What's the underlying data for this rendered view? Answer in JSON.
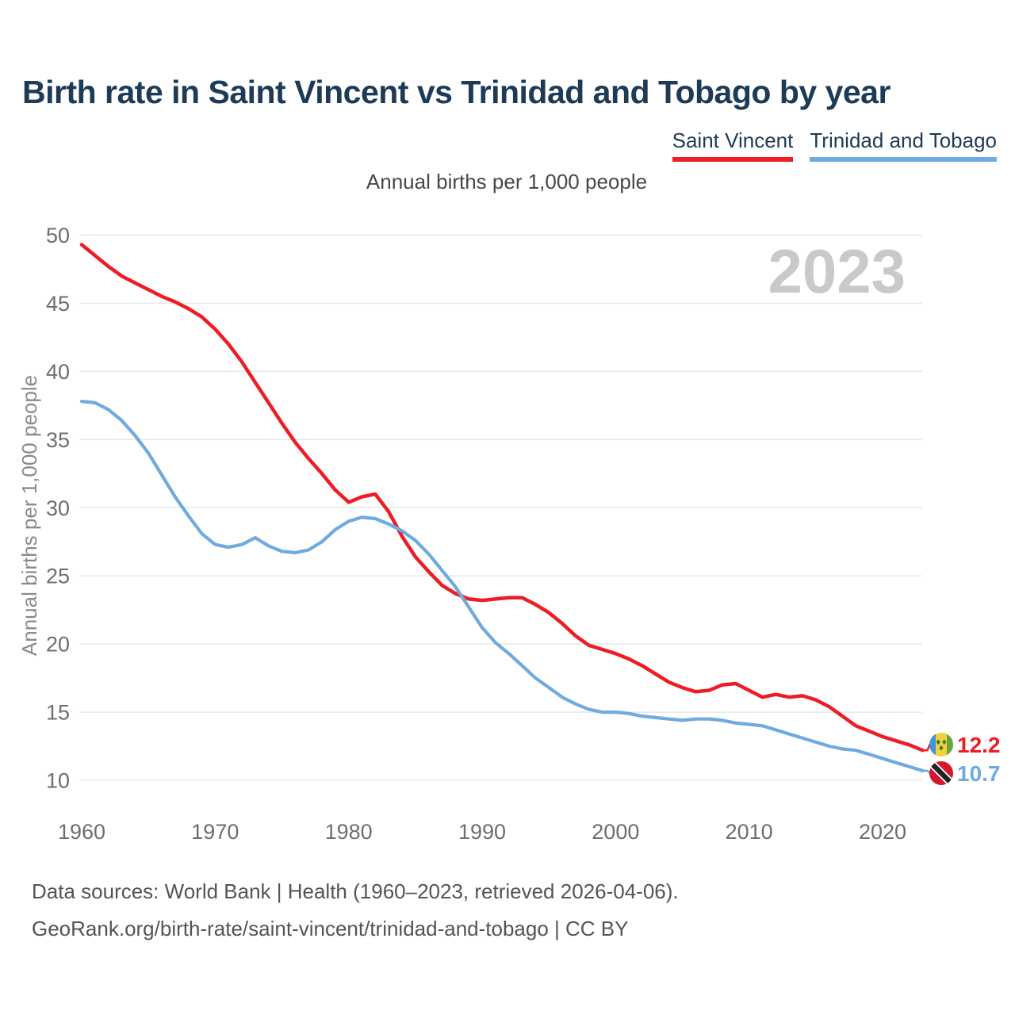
{
  "title": "Birth rate in Saint Vincent vs Trinidad and Tobago by year",
  "subtitle": "Annual births per 1,000 people",
  "watermark": "2023",
  "footer": {
    "line1": "Data sources: World Bank | Health (1960–2023, retrieved 2026-04-06).",
    "line2": "GeoRank.org/birth-rate/saint-vincent/trinidad-and-tobago | CC BY"
  },
  "end_labels": [
    {
      "series": "Saint Vincent",
      "value": "12.2",
      "flag": "saint_vincent"
    },
    {
      "series": "Trinidad and Tobago",
      "value": "10.7",
      "flag": "trinidad_and_tobago"
    }
  ],
  "icons": {
    "flags": {
      "saint_vincent": {
        "name": "saint-vincent-flag",
        "blue": "#4293d9",
        "yellow": "#f5cf3d",
        "green": "#66a63f",
        "diamond": "#2f7d31"
      },
      "trinidad_and_tobago": {
        "name": "trinidad-and-tobago-flag",
        "red": "#d8152f",
        "black": "#222222",
        "white": "#ffffff"
      }
    }
  },
  "colors": {
    "title": "#1d3a56",
    "grid": "#e8e8e8",
    "tick_label": "#6e6e6e",
    "axis_title": "#8a8a8a",
    "watermark": "#c9c9c9",
    "footer": "#545454"
  },
  "chart_data": {
    "type": "line",
    "title": "Birth rate in Saint Vincent vs Trinidad and Tobago by year",
    "subtitle": "Annual births per 1,000 people",
    "xlabel": "",
    "ylabel": "Annual births per 1,000 people",
    "xlim": [
      1960,
      2023
    ],
    "ylim": [
      10,
      50
    ],
    "yticks": [
      10,
      15,
      20,
      25,
      30,
      35,
      40,
      45,
      50
    ],
    "xticks": [
      1960,
      1970,
      1980,
      1990,
      2000,
      2010,
      2020
    ],
    "grid": "horizontal",
    "legend_position": "top-right",
    "x": [
      1960,
      1961,
      1962,
      1963,
      1964,
      1965,
      1966,
      1967,
      1968,
      1969,
      1970,
      1971,
      1972,
      1973,
      1974,
      1975,
      1976,
      1977,
      1978,
      1979,
      1980,
      1981,
      1982,
      1983,
      1984,
      1985,
      1986,
      1987,
      1988,
      1989,
      1990,
      1991,
      1992,
      1993,
      1994,
      1995,
      1996,
      1997,
      1998,
      1999,
      2000,
      2001,
      2002,
      2003,
      2004,
      2005,
      2006,
      2007,
      2008,
      2009,
      2010,
      2011,
      2012,
      2013,
      2014,
      2015,
      2016,
      2017,
      2018,
      2019,
      2020,
      2021,
      2022,
      2023
    ],
    "series": [
      {
        "name": "Saint Vincent",
        "color": "#ee1c25",
        "final_value": 12.2,
        "values": [
          49.3,
          48.5,
          47.7,
          47.0,
          46.5,
          46.0,
          45.5,
          45.1,
          44.6,
          44.0,
          43.1,
          42.0,
          40.7,
          39.2,
          37.7,
          36.2,
          34.8,
          33.6,
          32.5,
          31.3,
          30.4,
          30.8,
          31.0,
          29.7,
          27.9,
          26.4,
          25.3,
          24.3,
          23.7,
          23.3,
          23.2,
          23.3,
          23.4,
          23.4,
          22.9,
          22.3,
          21.5,
          20.6,
          19.9,
          19.6,
          19.3,
          18.9,
          18.4,
          17.8,
          17.2,
          16.8,
          16.5,
          16.6,
          17.0,
          17.1,
          16.6,
          16.1,
          16.3,
          16.1,
          16.2,
          15.9,
          15.4,
          14.7,
          14.0,
          13.6,
          13.2,
          12.9,
          12.6,
          12.2
        ]
      },
      {
        "name": "Trinidad and Tobago",
        "color": "#6fabde",
        "final_value": 10.7,
        "values": [
          37.8,
          37.7,
          37.2,
          36.4,
          35.3,
          34.0,
          32.4,
          30.8,
          29.4,
          28.1,
          27.3,
          27.1,
          27.3,
          27.8,
          27.2,
          26.8,
          26.7,
          26.9,
          27.5,
          28.4,
          29.0,
          29.3,
          29.2,
          28.8,
          28.3,
          27.6,
          26.6,
          25.4,
          24.2,
          22.7,
          21.2,
          20.1,
          19.3,
          18.4,
          17.5,
          16.8,
          16.1,
          15.6,
          15.2,
          15.0,
          15.0,
          14.9,
          14.7,
          14.6,
          14.5,
          14.4,
          14.5,
          14.5,
          14.4,
          14.2,
          14.1,
          14.0,
          13.7,
          13.4,
          13.1,
          12.8,
          12.5,
          12.3,
          12.2,
          11.9,
          11.6,
          11.3,
          11.0,
          10.7
        ]
      }
    ]
  }
}
